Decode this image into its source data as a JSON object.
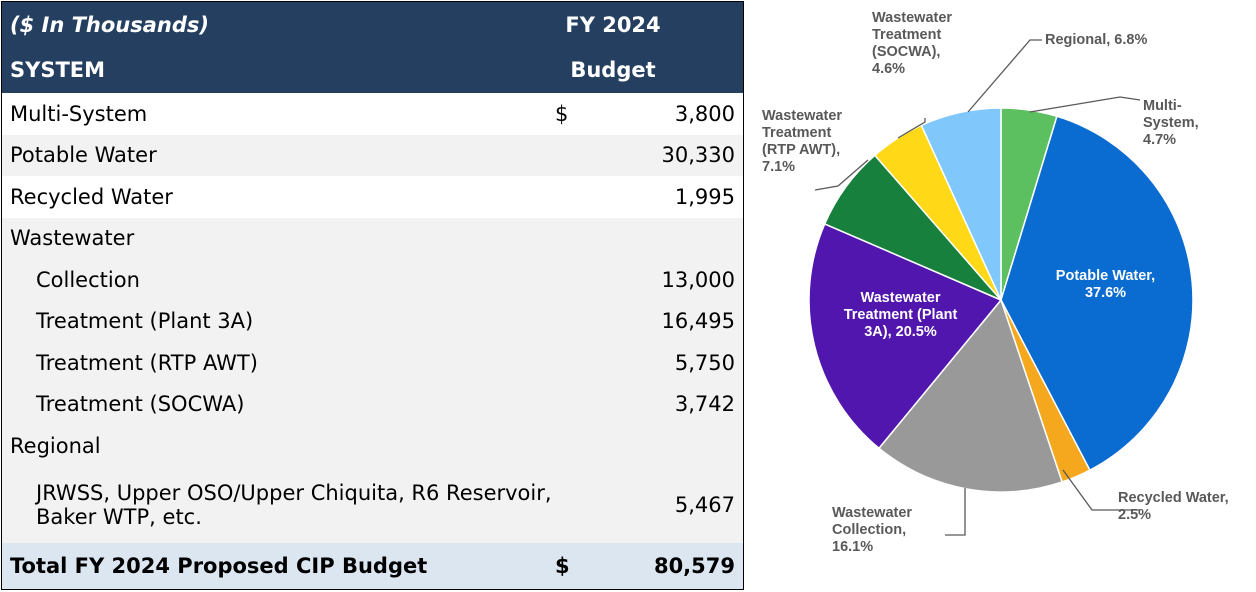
{
  "table": {
    "header": [
      [
        "($ In Thousands)",
        "FY 2024"
      ],
      [
        "SYSTEM",
        "Budget"
      ]
    ],
    "rows": [
      [
        "Multi-System",
        "$",
        "3,800"
      ],
      [
        "Potable Water",
        "",
        "30,330"
      ],
      [
        "Recycled Water",
        "",
        "1,995"
      ],
      [
        "Wastewater",
        "",
        ""
      ],
      [
        "Collection",
        "",
        "13,000"
      ],
      [
        "Treatment (Plant 3A)",
        "",
        "16,495"
      ],
      [
        "Treatment (RTP AWT)",
        "",
        "5,750"
      ],
      [
        "Treatment (SOCWA)",
        "",
        "3,742"
      ],
      [
        "Regional",
        "",
        ""
      ],
      [
        "JRWSS, Upper OSO/Upper Chiquita, R6 Reservoir, Baker WTP, etc.",
        "",
        "5,467"
      ]
    ],
    "total": [
      "Total FY 2024 Proposed CIP Budget",
      "$",
      "80,579"
    ]
  },
  "chart_data": {
    "type": "pie",
    "labels": [
      "Multi-System, 4.7%",
      "Potable Water, 37.6%",
      "Recycled Water, 2.5%",
      "Wastewater Collection, 16.1%",
      "Wastewater Treatment (Plant 3A), 20.5%",
      "Wastewater Treatment (RTP AWT), 7.1%",
      "Wastewater Treatment (SOCWA), 4.6%",
      "Regional, 6.8%"
    ],
    "values": [
      4.7,
      37.6,
      2.5,
      16.1,
      20.5,
      7.1,
      4.6,
      6.8
    ],
    "colors": [
      "#5cbf60",
      "#0a6bd0",
      "#f5a81e",
      "#999999",
      "#5116ad",
      "#16803c",
      "#ffd817",
      "#80c8fb"
    ]
  }
}
